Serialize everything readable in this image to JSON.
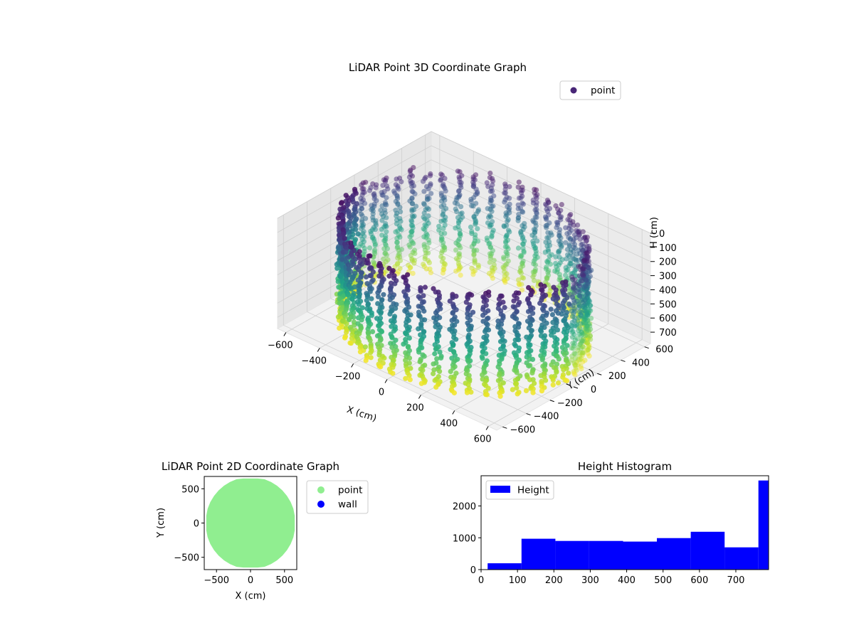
{
  "chart_data": [
    {
      "type": "scatter3d",
      "title": "LiDAR Point 3D Coordinate Graph",
      "xlabel": "X (cm)",
      "ylabel": "Y (cm)",
      "zlabel": "H (cm)",
      "xlim": [
        -650,
        650
      ],
      "ylim": [
        -650,
        650
      ],
      "zlim": [
        0,
        780
      ],
      "z_inverted": true,
      "xticks": [
        -600,
        -400,
        -200,
        0,
        200,
        400,
        600
      ],
      "yticks": [
        -600,
        -400,
        -200,
        0,
        200,
        400,
        600
      ],
      "zticks": [
        0,
        100,
        200,
        300,
        400,
        500,
        600,
        700
      ],
      "colormap": "viridis",
      "legend": {
        "entries": [
          "point"
        ],
        "placement": "upper-right"
      },
      "series": [
        {
          "name": "point",
          "color": "#482677",
          "description_shape": "columns of points on a ring of radius ~600 cm spanning heights 0-780 cm",
          "ring_radius": 600,
          "column_count": 48
        }
      ]
    },
    {
      "type": "scatter",
      "title": "LiDAR Point 2D Coordinate Graph",
      "xlabel": "X (cm)",
      "ylabel": "Y (cm)",
      "xlim": [
        -680,
        680
      ],
      "ylim": [
        -680,
        680
      ],
      "xticks": [
        -500,
        0,
        500
      ],
      "yticks": [
        500,
        0,
        -500
      ],
      "legend": {
        "entries": [
          "point",
          "wall"
        ],
        "placement": "outside-right"
      },
      "series": [
        {
          "name": "point",
          "color": "#90ee90",
          "extent": {
            "x": [
              -650,
              650
            ],
            "y": [
              -650,
              650
            ]
          }
        },
        {
          "name": "wall",
          "color": "#0000ff"
        }
      ]
    },
    {
      "type": "histogram",
      "title": "Height Histogram",
      "xlim": [
        0,
        790
      ],
      "ylim": [
        0,
        2950
      ],
      "xticks": [
        0,
        100,
        200,
        300,
        400,
        500,
        600,
        700
      ],
      "yticks": [
        0,
        1000,
        2000
      ],
      "legend": {
        "entries": [
          "Height"
        ],
        "placement": "upper-left"
      },
      "color": "#0000ff",
      "bins": [
        {
          "x0": 18,
          "x1": 111,
          "count": 200
        },
        {
          "x0": 111,
          "x1": 204,
          "count": 970
        },
        {
          "x0": 204,
          "x1": 297,
          "count": 900
        },
        {
          "x0": 297,
          "x1": 390,
          "count": 900
        },
        {
          "x0": 390,
          "x1": 483,
          "count": 880
        },
        {
          "x0": 483,
          "x1": 576,
          "count": 990
        },
        {
          "x0": 576,
          "x1": 669,
          "count": 1190
        },
        {
          "x0": 669,
          "x1": 762,
          "count": 700
        },
        {
          "x0": 762,
          "x1": 790,
          "count": 2800
        }
      ]
    }
  ]
}
